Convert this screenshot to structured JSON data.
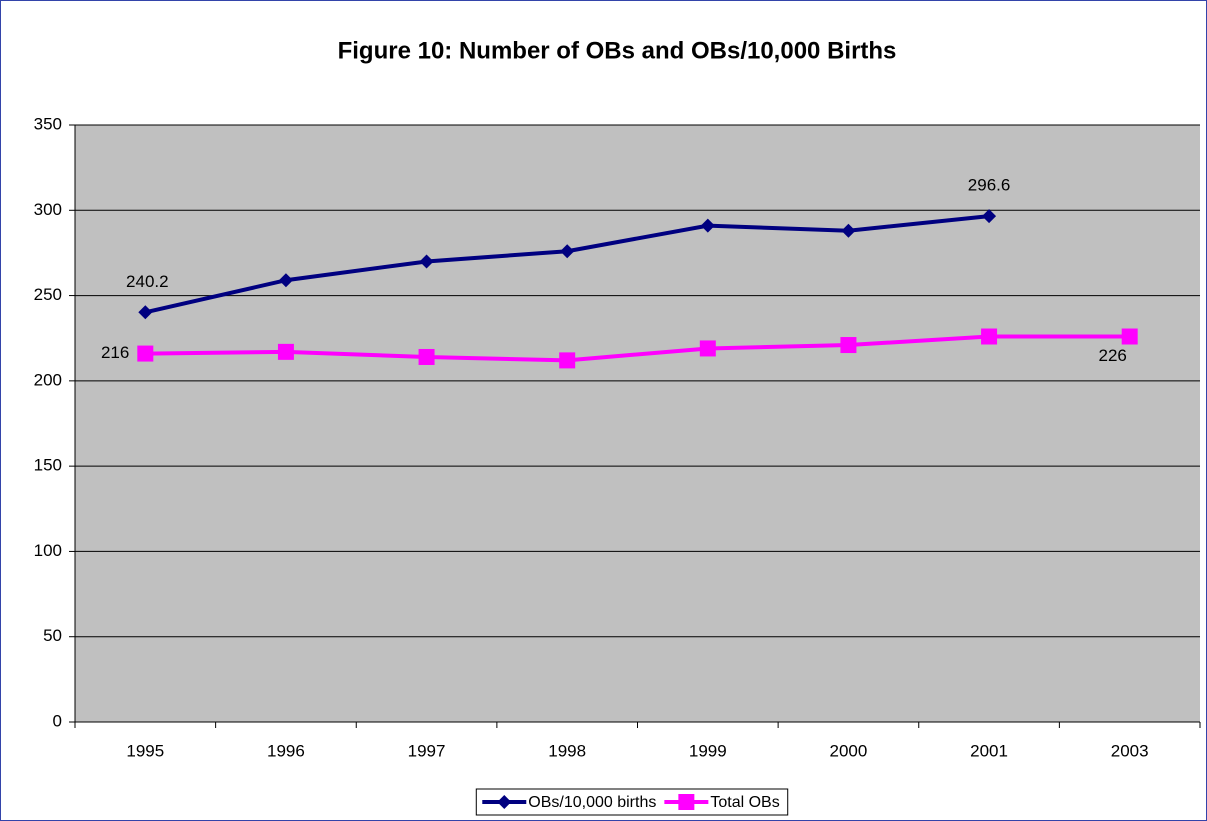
{
  "chart_data": {
    "type": "line",
    "title": "Figure 10: Number of OBs and OBs/10,000 Births",
    "categories": [
      "1995",
      "1996",
      "1997",
      "1998",
      "1999",
      "2000",
      "2001",
      "2003"
    ],
    "series": [
      {
        "name": "OBs/10,000 births",
        "color": "#000080",
        "marker": "diamond",
        "values": [
          240.2,
          259,
          270,
          276,
          291,
          288,
          296.6,
          null
        ],
        "value_labels": [
          "240.2",
          null,
          null,
          null,
          null,
          null,
          "296.6",
          null
        ]
      },
      {
        "name": "Total OBs",
        "color": "#ff00ff",
        "marker": "square",
        "values": [
          216,
          217,
          214,
          212,
          219,
          221,
          226,
          226
        ],
        "value_labels": [
          "216",
          null,
          null,
          null,
          null,
          null,
          null,
          "226"
        ]
      }
    ],
    "ylim": [
      0,
      350
    ],
    "yticks": [
      0,
      50,
      100,
      150,
      200,
      250,
      300,
      350
    ],
    "grid": true,
    "plot_background": "#c0c0c0",
    "legend": "bottom"
  }
}
